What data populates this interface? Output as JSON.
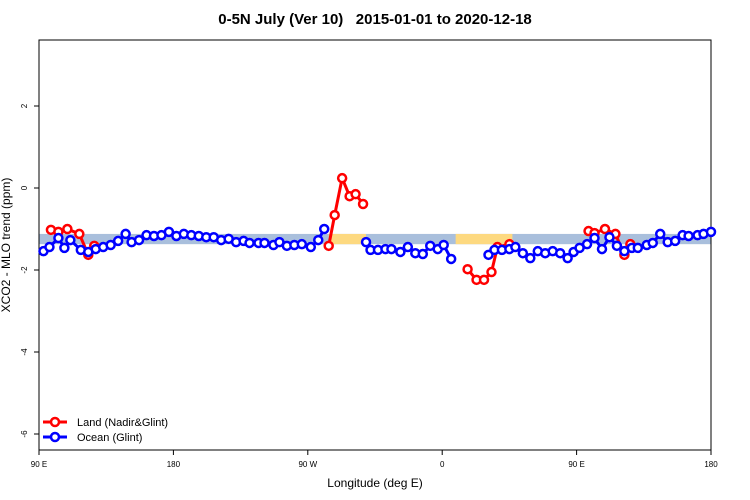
{
  "chart_data": {
    "type": "line",
    "title": "0-5N July (Ver 10)   2015-01-01 to 2020-12-18",
    "x_label": "Longitude (deg E)",
    "y_label": "XCO2 - MLO trend (ppm)",
    "xlim": [
      90,
      540
    ],
    "ylim": [
      -6.39,
      3.61
    ],
    "xticks": [
      {
        "value": 90,
        "label": "90 E"
      },
      180,
      {
        "value": 270,
        "label": "90 W"
      },
      0,
      {
        "value": 450,
        "label": "90 E"
      },
      180
    ],
    "xtick_values": [
      90,
      180,
      270,
      360,
      450,
      540
    ],
    "yticks": [
      -6,
      -4,
      -2,
      0,
      2
    ],
    "band": {
      "ylim": [
        -1.37,
        -1.12
      ],
      "color": "#a9bfdc"
    },
    "band_highlights": [
      {
        "xlim": [
          284,
          309
        ],
        "color": "#fdd980"
      },
      {
        "xlim": [
          369,
          407
        ],
        "color": "#fdd980"
      }
    ],
    "legend": "bottom-left",
    "series": [
      {
        "name": "Land (Nadir&Glint)",
        "color": "#ff0000",
        "x": [
          98,
          103,
          109,
          117,
          123,
          127,
          null,
          284,
          288,
          293,
          298,
          302,
          307,
          null,
          377,
          383,
          388,
          393,
          397,
          405,
          null,
          458,
          462,
          469,
          476,
          482,
          486
        ],
        "values": [
          -1.02,
          -1.07,
          -1.0,
          -1.12,
          -1.63,
          -1.41,
          null,
          -1.41,
          -0.66,
          0.24,
          -0.2,
          -0.15,
          -0.39,
          null,
          -1.98,
          -2.24,
          -2.24,
          -2.05,
          -1.44,
          -1.37,
          null,
          -1.05,
          -1.1,
          -1.0,
          -1.12,
          -1.63,
          -1.37
        ]
      },
      {
        "name": "Ocean (Glint)",
        "color": "#0000ff",
        "x": [
          93,
          97,
          103,
          107,
          111,
          118,
          123,
          128,
          133,
          138,
          143,
          148,
          152,
          157,
          162,
          167,
          172,
          177,
          182,
          187,
          192,
          197,
          202,
          207,
          212,
          217,
          222,
          227,
          231,
          237,
          241,
          247,
          251,
          256,
          261,
          266,
          272,
          277,
          281,
          null,
          309,
          312,
          317,
          322,
          326,
          332,
          337,
          342,
          347,
          352,
          357,
          361,
          366,
          null,
          391,
          395,
          400,
          405,
          409,
          414,
          419,
          424,
          429,
          434,
          439,
          444,
          448,
          452,
          457,
          462,
          467,
          472,
          477,
          482,
          487,
          491,
          497,
          501,
          506,
          511,
          516,
          521,
          525,
          531,
          535,
          540
        ],
        "values": [
          -1.54,
          -1.44,
          -1.22,
          -1.46,
          -1.27,
          -1.51,
          -1.56,
          -1.49,
          -1.44,
          -1.39,
          -1.29,
          -1.12,
          -1.32,
          -1.27,
          -1.15,
          -1.17,
          -1.15,
          -1.07,
          -1.17,
          -1.12,
          -1.15,
          -1.17,
          -1.2,
          -1.2,
          -1.27,
          -1.24,
          -1.32,
          -1.29,
          -1.34,
          -1.34,
          -1.34,
          -1.39,
          -1.32,
          -1.41,
          -1.39,
          -1.37,
          -1.44,
          -1.27,
          -1.0,
          null,
          -1.32,
          -1.51,
          -1.51,
          -1.49,
          -1.49,
          -1.56,
          -1.44,
          -1.59,
          -1.61,
          -1.41,
          -1.49,
          -1.39,
          -1.73,
          null,
          -1.63,
          -1.51,
          -1.51,
          -1.49,
          -1.44,
          -1.59,
          -1.71,
          -1.54,
          -1.59,
          -1.54,
          -1.59,
          -1.71,
          -1.56,
          -1.46,
          -1.37,
          -1.22,
          -1.49,
          -1.2,
          -1.41,
          -1.54,
          -1.46,
          -1.46,
          -1.39,
          -1.34,
          -1.12,
          -1.32,
          -1.29,
          -1.15,
          -1.17,
          -1.15,
          -1.12,
          -1.07
        ]
      }
    ]
  }
}
